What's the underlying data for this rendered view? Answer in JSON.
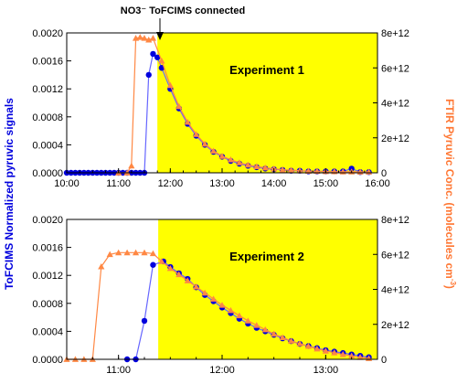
{
  "annotation": {
    "text": "NO3⁻ ToFCIMS connected"
  },
  "left_axis_label": "ToFCIMS Normalized pyruvic signals",
  "right_axis_label": {
    "main": "FTIR Pyruvic Conc. (molecules cm",
    "sup": "-3",
    "close": ")"
  },
  "colors": {
    "cims": "#0000dd",
    "ftir": "#ff8844",
    "highlight": "#ffff00",
    "cims_line": "#6666ff"
  },
  "chart_data": [
    {
      "type": "line",
      "panel": "top",
      "title": "Experiment 1",
      "xlim": [
        "10:00",
        "16:00"
      ],
      "x_ticks": [
        "10:00",
        "11:00",
        "12:00",
        "13:00",
        "14:00",
        "15:00",
        "16:00"
      ],
      "ylim_left": [
        0,
        0.002
      ],
      "y_ticks_left": [
        "0.0000",
        "0.0004",
        "0.0008",
        "0.0012",
        "0.0016",
        "0.0020"
      ],
      "ylim_right": [
        0,
        8000000000000.0
      ],
      "y_ticks_right": [
        "0",
        "2e+12",
        "4e+12",
        "6e+12",
        "8e+12"
      ],
      "highlight_start": "11:45",
      "series": [
        {
          "axis": "left",
          "marker": "circle",
          "points": [
            [
              "10:00",
              0
            ],
            [
              "10:05",
              0
            ],
            [
              "10:10",
              0
            ],
            [
              "10:15",
              0
            ],
            [
              "10:20",
              0
            ],
            [
              "10:25",
              0
            ],
            [
              "10:30",
              0
            ],
            [
              "10:35",
              0
            ],
            [
              "10:40",
              0
            ],
            [
              "10:45",
              0
            ],
            [
              "10:50",
              0
            ],
            [
              "10:55",
              0
            ],
            [
              "11:00",
              0
            ],
            [
              "11:05",
              0
            ],
            [
              "11:10",
              0
            ],
            [
              "11:15",
              0
            ],
            [
              "11:20",
              0
            ],
            [
              "11:25",
              0
            ],
            [
              "11:30",
              0
            ],
            [
              "11:35",
              0.0014
            ],
            [
              "11:40",
              0.0017
            ],
            [
              "11:45",
              0.00165
            ],
            [
              "11:50",
              0.0015
            ],
            [
              "12:00",
              0.0012
            ],
            [
              "12:10",
              0.00092
            ],
            [
              "12:20",
              0.0007
            ],
            [
              "12:30",
              0.00053
            ],
            [
              "12:40",
              0.0004
            ],
            [
              "12:50",
              0.0003
            ],
            [
              "13:00",
              0.00023
            ],
            [
              "13:10",
              0.00017
            ],
            [
              "13:20",
              0.00013
            ],
            [
              "13:30",
              0.0001
            ],
            [
              "13:40",
              8e-05
            ],
            [
              "13:50",
              6e-05
            ],
            [
              "14:00",
              5e-05
            ],
            [
              "14:10",
              4e-05
            ],
            [
              "14:20",
              3e-05
            ],
            [
              "14:30",
              3e-05
            ],
            [
              "14:40",
              2e-05
            ],
            [
              "14:50",
              2e-05
            ],
            [
              "15:00",
              2e-05
            ],
            [
              "15:10",
              2e-05
            ],
            [
              "15:20",
              2e-05
            ],
            [
              "15:30",
              6e-05
            ],
            [
              "15:40",
              1e-05
            ],
            [
              "15:50",
              1e-05
            ]
          ]
        },
        {
          "axis": "right",
          "marker": "triangle",
          "points": [
            [
              "11:00",
              0
            ],
            [
              "11:10",
              0
            ],
            [
              "11:15",
              400000000000.0
            ],
            [
              "11:20",
              7700000000000.0
            ],
            [
              "11:25",
              7750000000000.0
            ],
            [
              "11:30",
              7700000000000.0
            ],
            [
              "11:35",
              7600000000000.0
            ],
            [
              "11:40",
              7700000000000.0
            ],
            [
              "11:50",
              6400000000000.0
            ],
            [
              "12:00",
              5000000000000.0
            ],
            [
              "12:10",
              3800000000000.0
            ],
            [
              "12:20",
              2900000000000.0
            ],
            [
              "12:30",
              2200000000000.0
            ],
            [
              "12:40",
              1650000000000.0
            ],
            [
              "12:50",
              1250000000000.0
            ],
            [
              "13:00",
              950000000000.0
            ],
            [
              "13:10",
              750000000000.0
            ],
            [
              "13:20",
              580000000000.0
            ],
            [
              "13:30",
              450000000000.0
            ],
            [
              "13:40",
              360000000000.0
            ],
            [
              "13:50",
              290000000000.0
            ],
            [
              "14:00",
              230000000000.0
            ],
            [
              "14:10",
              180000000000.0
            ],
            [
              "14:20",
              150000000000.0
            ],
            [
              "14:30",
              120000000000.0
            ],
            [
              "14:40",
              100000000000.0
            ],
            [
              "14:50",
              90000000000.0
            ],
            [
              "15:00",
              80000000000.0
            ],
            [
              "15:10",
              70000000000.0
            ],
            [
              "15:20",
              60000000000.0
            ],
            [
              "15:30",
              60000000000.0
            ],
            [
              "15:40",
              50000000000.0
            ],
            [
              "15:50",
              50000000000.0
            ]
          ]
        }
      ]
    },
    {
      "type": "line",
      "panel": "bottom",
      "title": "Experiment 2",
      "xlim": [
        "10:30",
        "13:30"
      ],
      "x_ticks": [
        "11:00",
        "12:00",
        "13:00"
      ],
      "ylim_left": [
        0,
        0.002
      ],
      "y_ticks_left": [
        "0.0000",
        "0.0004",
        "0.0008",
        "0.0012",
        "0.0016",
        "0.0020"
      ],
      "ylim_right": [
        0,
        8000000000000.0
      ],
      "y_ticks_right": [
        "0",
        "2e+12",
        "4e+12",
        "6e+12",
        "8e+12"
      ],
      "highlight_start": "11:23",
      "series": [
        {
          "axis": "left",
          "marker": "circle",
          "points": [
            [
              "11:05",
              0
            ],
            [
              "11:10",
              0
            ],
            [
              "11:15",
              0.00055
            ],
            [
              "11:20",
              0.00135
            ],
            [
              "11:26",
              0.0014
            ],
            [
              "11:30",
              0.00132
            ],
            [
              "11:35",
              0.00123
            ],
            [
              "11:40",
              0.00115
            ],
            [
              "11:45",
              0.00103
            ],
            [
              "11:50",
              0.00092
            ],
            [
              "11:55",
              0.00083
            ],
            [
              "12:00",
              0.00074
            ],
            [
              "12:05",
              0.00066
            ],
            [
              "12:10",
              0.00058
            ],
            [
              "12:15",
              0.00051
            ],
            [
              "12:20",
              0.00045
            ],
            [
              "12:25",
              0.0004
            ],
            [
              "12:30",
              0.00035
            ],
            [
              "12:35",
              0.0003
            ],
            [
              "12:40",
              0.00026
            ],
            [
              "12:45",
              0.00022
            ],
            [
              "12:50",
              0.00019
            ],
            [
              "12:55",
              0.00016
            ],
            [
              "13:00",
              0.00013
            ],
            [
              "13:05",
              0.00011
            ],
            [
              "13:10",
              9e-05
            ],
            [
              "13:15",
              7e-05
            ],
            [
              "13:20",
              5e-05
            ],
            [
              "13:25",
              3e-05
            ]
          ]
        },
        {
          "axis": "right",
          "marker": "triangle",
          "points": [
            [
              "10:30",
              0
            ],
            [
              "10:35",
              0
            ],
            [
              "10:40",
              0
            ],
            [
              "10:45",
              0
            ],
            [
              "10:50",
              5300000000000.0
            ],
            [
              "10:55",
              6000000000000.0
            ],
            [
              "11:00",
              6100000000000.0
            ],
            [
              "11:05",
              6100000000000.0
            ],
            [
              "11:10",
              6100000000000.0
            ],
            [
              "11:15",
              6100000000000.0
            ],
            [
              "11:20",
              6050000000000.0
            ],
            [
              "11:25",
              5600000000000.0
            ],
            [
              "11:30",
              5200000000000.0
            ],
            [
              "11:35",
              4850000000000.0
            ],
            [
              "11:40",
              4500000000000.0
            ],
            [
              "11:45",
              4150000000000.0
            ],
            [
              "11:50",
              3800000000000.0
            ],
            [
              "11:55",
              3450000000000.0
            ],
            [
              "12:00",
              3100000000000.0
            ],
            [
              "12:05",
              2800000000000.0
            ],
            [
              "12:10",
              2500000000000.0
            ],
            [
              "12:15",
              2200000000000.0
            ],
            [
              "12:20",
              1950000000000.0
            ],
            [
              "12:25",
              1700000000000.0
            ],
            [
              "12:30",
              1450000000000.0
            ],
            [
              "12:35",
              1250000000000.0
            ],
            [
              "12:40",
              1050000000000.0
            ],
            [
              "12:45",
              900000000000.0
            ],
            [
              "12:50",
              750000000000.0
            ],
            [
              "12:55",
              600000000000.0
            ],
            [
              "13:00",
              480000000000.0
            ],
            [
              "13:05",
              380000000000.0
            ],
            [
              "13:10",
              280000000000.0
            ],
            [
              "13:15",
              200000000000.0
            ],
            [
              "13:20",
              120000000000.0
            ],
            [
              "13:25",
              50000000000.0
            ]
          ]
        }
      ]
    }
  ]
}
